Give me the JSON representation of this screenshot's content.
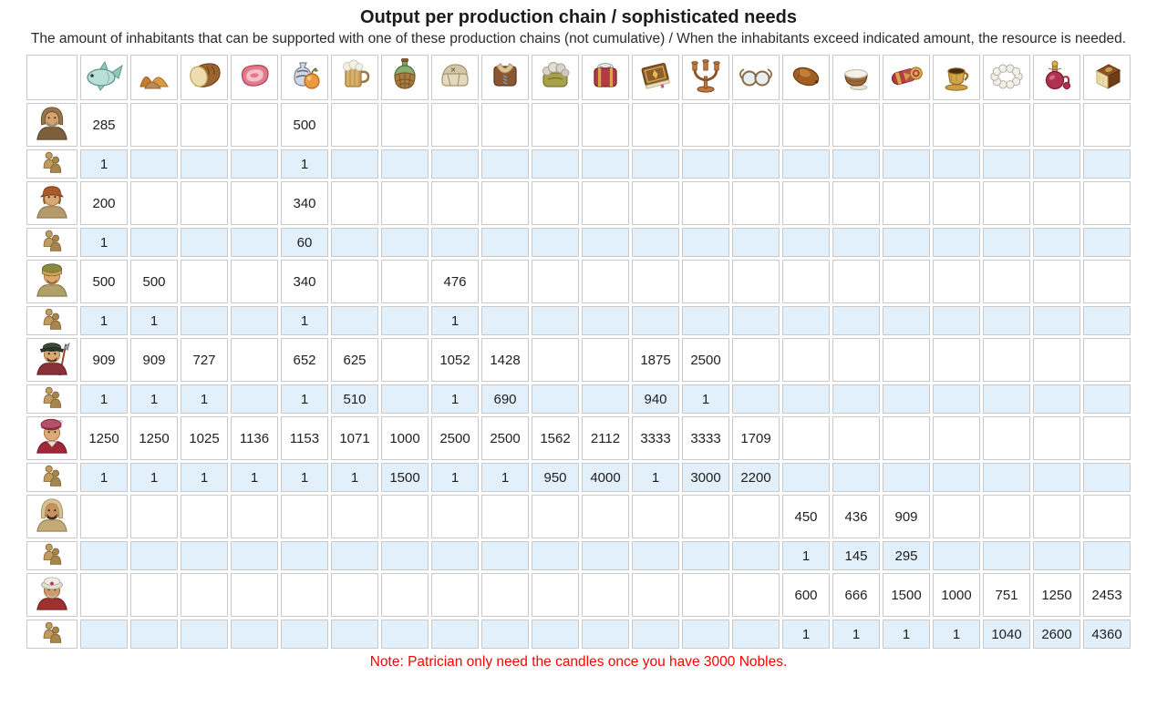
{
  "title": "Output per production chain / sophisticated needs",
  "subtitle": "The amount of inhabitants that can be supported with one of these production chains (not cumulative) / When the inhabitants exceed indicated amount, the resource is needed.",
  "note": "Note: Patrician only need the candles once you have 3000 Nobles.",
  "colors": {
    "threshold_row_bg": "#e1f0fa",
    "cell_border": "#c9c9c9",
    "note_text": "#ff0000"
  },
  "population_icon": "population-icon",
  "columns": [
    {
      "id": "fish",
      "icon": "fish-icon"
    },
    {
      "id": "spices",
      "icon": "spices-icon"
    },
    {
      "id": "bread",
      "icon": "bread-icon"
    },
    {
      "id": "meat",
      "icon": "meat-icon"
    },
    {
      "id": "cider",
      "icon": "cider-icon"
    },
    {
      "id": "beer",
      "icon": "beer-icon"
    },
    {
      "id": "wine",
      "icon": "wine-icon"
    },
    {
      "id": "linen_garments",
      "icon": "linen-garments-icon"
    },
    {
      "id": "leather_jerkins",
      "icon": "leather-jerkins-icon"
    },
    {
      "id": "fur_coats",
      "icon": "fur-coats-icon"
    },
    {
      "id": "brocade_robes",
      "icon": "brocade-robes-icon"
    },
    {
      "id": "books",
      "icon": "books-icon"
    },
    {
      "id": "candlesticks",
      "icon": "candlesticks-icon"
    },
    {
      "id": "glasses",
      "icon": "glasses-icon"
    },
    {
      "id": "dates",
      "icon": "dates-icon"
    },
    {
      "id": "milk",
      "icon": "milk-icon"
    },
    {
      "id": "carpets",
      "icon": "carpets-icon"
    },
    {
      "id": "coffee",
      "icon": "coffee-icon"
    },
    {
      "id": "pearl_necklaces",
      "icon": "pearl-necklace-icon"
    },
    {
      "id": "perfume",
      "icon": "perfume-icon"
    },
    {
      "id": "marzipan",
      "icon": "marzipan-icon"
    }
  ],
  "rows": [
    {
      "id": "beggar",
      "portrait": "beggar-portrait",
      "output": {
        "fish": 285,
        "cider": 500
      },
      "threshold": {
        "fish": 1,
        "cider": 1
      }
    },
    {
      "id": "peasant",
      "portrait": "peasant-portrait",
      "output": {
        "fish": 200,
        "cider": 340
      },
      "threshold": {
        "fish": 1,
        "cider": 60
      }
    },
    {
      "id": "citizen",
      "portrait": "citizen-portrait",
      "output": {
        "fish": 500,
        "spices": 500,
        "cider": 340,
        "linen_garments": 476
      },
      "threshold": {
        "fish": 1,
        "spices": 1,
        "cider": 1,
        "linen_garments": 1
      }
    },
    {
      "id": "patrician",
      "portrait": "patrician-portrait",
      "output": {
        "fish": 909,
        "spices": 909,
        "bread": 727,
        "cider": 652,
        "beer": 625,
        "linen_garments": 1052,
        "leather_jerkins": 1428,
        "books": 1875,
        "candlesticks": 2500
      },
      "threshold": {
        "fish": 1,
        "spices": 1,
        "bread": 1,
        "cider": 1,
        "beer": 510,
        "linen_garments": 1,
        "leather_jerkins": 690,
        "books": 940,
        "candlesticks": 1
      }
    },
    {
      "id": "nobleman",
      "portrait": "nobleman-portrait",
      "output": {
        "fish": 1250,
        "spices": 1250,
        "bread": 1025,
        "meat": 1136,
        "cider": 1153,
        "beer": 1071,
        "wine": 1000,
        "linen_garments": 2500,
        "leather_jerkins": 2500,
        "fur_coats": 1562,
        "brocade_robes": 2112,
        "books": 3333,
        "candlesticks": 3333,
        "glasses": 1709
      },
      "threshold": {
        "fish": 1,
        "spices": 1,
        "bread": 1,
        "meat": 1,
        "cider": 1,
        "beer": 1,
        "wine": 1500,
        "linen_garments": 1,
        "leather_jerkins": 1,
        "fur_coats": 950,
        "brocade_robes": 4000,
        "books": 1,
        "candlesticks": 3000,
        "glasses": 2200
      }
    },
    {
      "id": "nomad",
      "portrait": "nomad-portrait",
      "output": {
        "dates": 450,
        "milk": 436,
        "carpets": 909
      },
      "threshold": {
        "dates": 1,
        "milk": 145,
        "carpets": 295
      }
    },
    {
      "id": "envoy",
      "portrait": "envoy-portrait",
      "output": {
        "dates": 600,
        "milk": 666,
        "carpets": 1500,
        "coffee": 1000,
        "pearl_necklaces": 751,
        "perfume": 1250,
        "marzipan": 2453
      },
      "threshold": {
        "dates": 1,
        "milk": 1,
        "carpets": 1,
        "coffee": 1,
        "pearl_necklaces": 1040,
        "perfume": 2600,
        "marzipan": 4360
      }
    }
  ]
}
